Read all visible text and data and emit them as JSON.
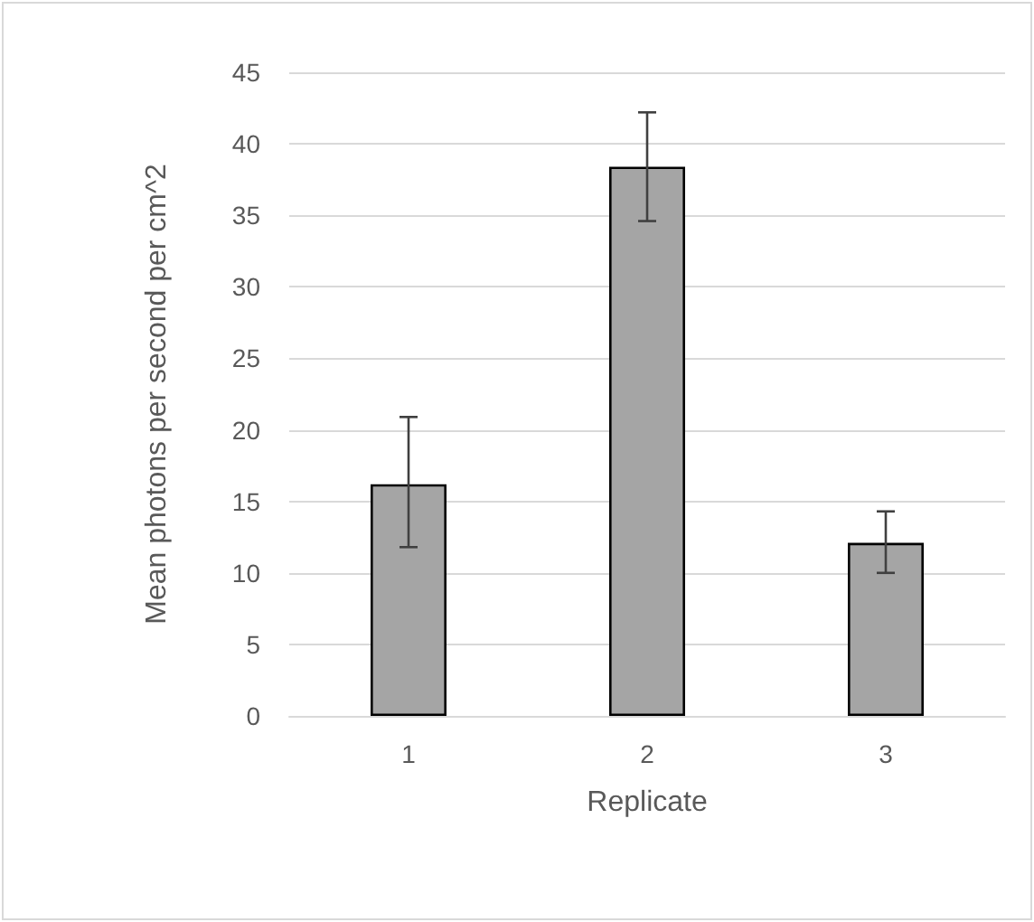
{
  "chart_data": {
    "type": "bar",
    "xlabel": "Replicate",
    "ylabel": "Mean photons per second per cm^2",
    "categories": [
      "1",
      "2",
      "3"
    ],
    "series": [
      {
        "color": "#a5a5a5",
        "values": [
          16.2,
          38.4,
          12.1
        ],
        "errors": [
          [
            11.8,
            20.9
          ],
          [
            34.6,
            42.2
          ],
          [
            10.0,
            14.3
          ]
        ]
      }
    ],
    "ylim": [
      0,
      45
    ],
    "yticks": [
      0,
      5,
      10,
      15,
      20,
      25,
      30,
      35,
      40,
      45
    ],
    "grid": "y"
  }
}
